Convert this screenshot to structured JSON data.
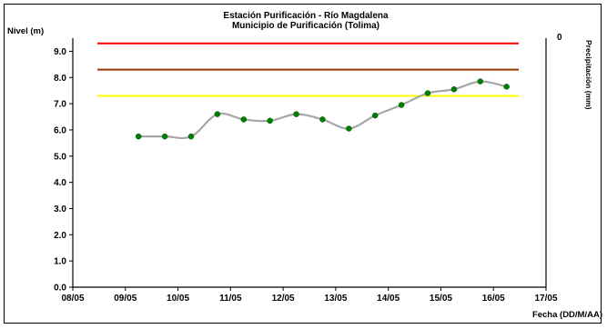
{
  "chart_data": {
    "type": "line",
    "title": "Estación Purificación - Río Magdalena",
    "subtitle": "Municipio de Purificación (Tolima)",
    "ylabel": "Nivel (m)",
    "xlabel": "Fecha (DD/M/AA)",
    "right_axis": {
      "tick_label": "0",
      "label": "Precipitación (mm)"
    },
    "ylim": [
      0,
      9.5
    ],
    "yticks": [
      "0.0",
      "1.0",
      "2.0",
      "3.0",
      "4.0",
      "5.0",
      "6.0",
      "7.0",
      "8.0",
      "9.0"
    ],
    "ytick_values": [
      0,
      1,
      2,
      3,
      4,
      5,
      6,
      7,
      8,
      9
    ],
    "xlim": [
      0,
      9
    ],
    "xticks": [
      "08/05",
      "09/05",
      "10/05",
      "11/05",
      "12/05",
      "13/05",
      "14/05",
      "15/05",
      "16/05",
      "17/05"
    ],
    "grid": false,
    "thresholds": [
      {
        "value": 9.3,
        "color": "#ff0000"
      },
      {
        "value": 8.3,
        "color": "#993300"
      },
      {
        "value": 7.3,
        "color": "#ffff00"
      }
    ],
    "series": [
      {
        "x": [
          1.25,
          1.75,
          2.25,
          2.75,
          3.25,
          3.75,
          4.25,
          4.75,
          5.25,
          5.75,
          6.25,
          6.75,
          7.25,
          7.75,
          8.25
        ],
        "y": [
          5.75,
          5.75,
          5.75,
          6.6,
          6.4,
          6.35,
          6.6,
          6.4,
          6.05,
          6.55,
          6.95,
          7.4,
          7.55,
          7.85,
          7.65
        ],
        "line_color": "#a6a6a6",
        "marker_color": "#008000"
      }
    ]
  }
}
